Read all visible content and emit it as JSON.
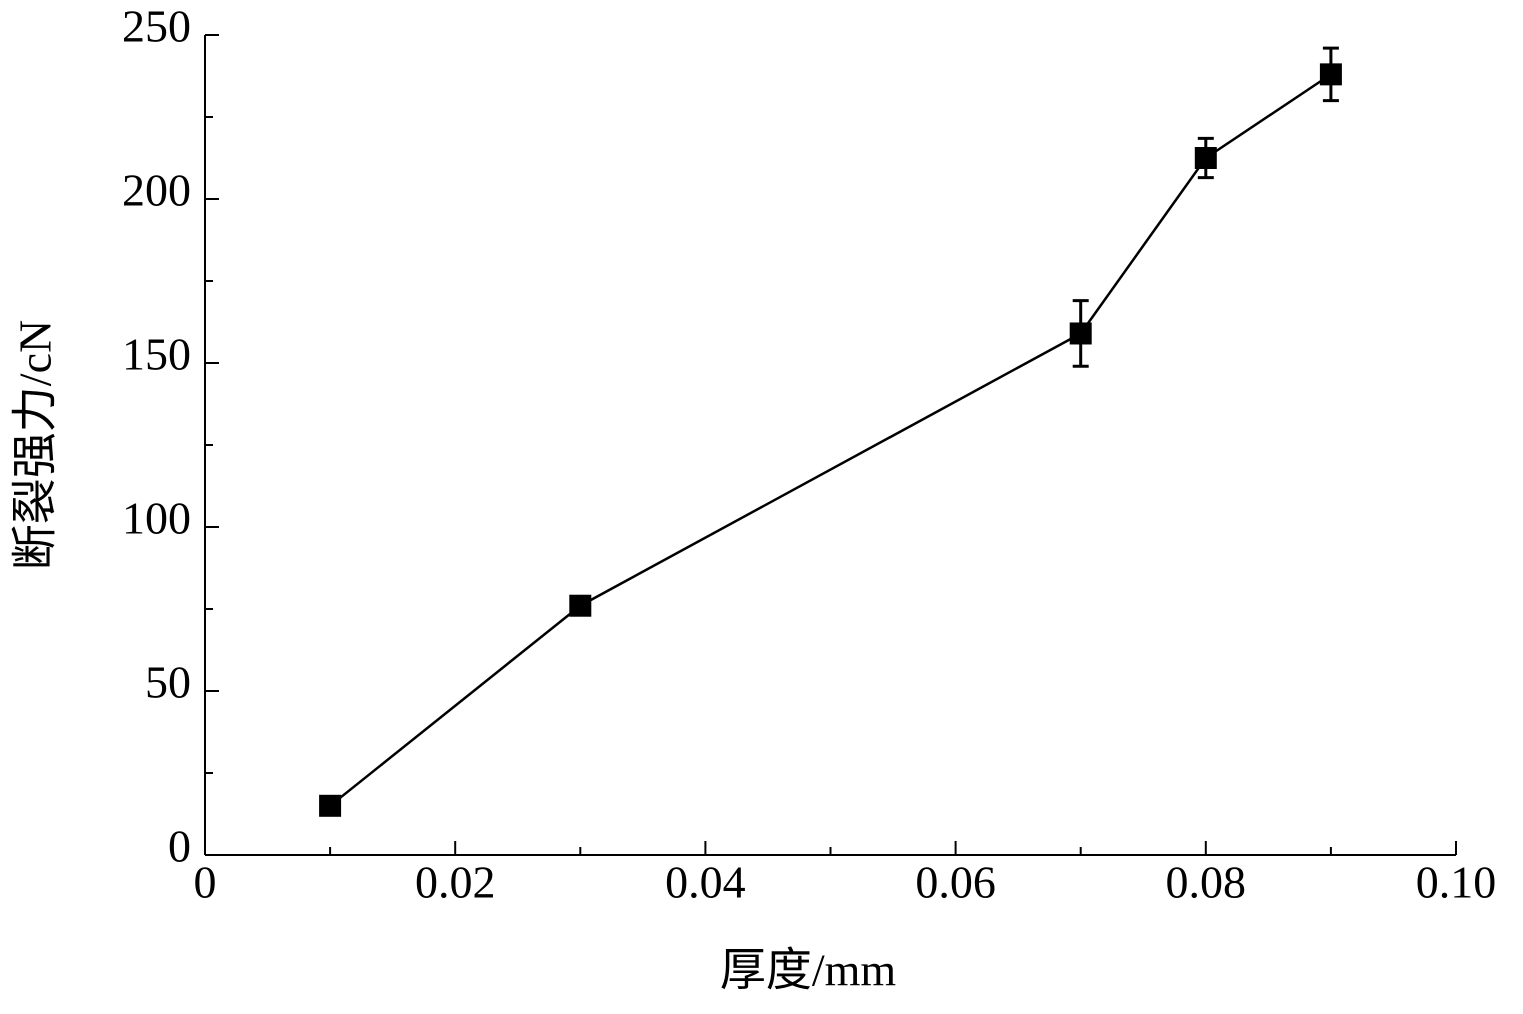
{
  "chart_data": {
    "type": "line",
    "x_label": "厚度/mm",
    "y_label": "断裂强力/cN",
    "x": [
      0.01,
      0.03,
      0.07,
      0.08,
      0.09
    ],
    "series": [
      {
        "color": "#000000",
        "values": [
          15,
          76,
          159,
          212.5,
          238
        ],
        "errors": [
          1,
          1,
          10,
          6,
          8
        ]
      }
    ],
    "xlim": [
      0,
      0.1
    ],
    "ylim": [
      0,
      250
    ],
    "xticks": [
      0,
      0.02,
      0.04,
      0.06,
      0.08,
      {
        "value": 0.1,
        "label": "0.10"
      }
    ],
    "yticks": [
      0,
      50,
      100,
      150,
      200,
      250
    ],
    "xminorticks": [
      0.01,
      0.03,
      0.05,
      0.07,
      0.09
    ],
    "yminorticks": [
      25,
      75,
      125,
      175,
      225
    ],
    "grid": false
  }
}
